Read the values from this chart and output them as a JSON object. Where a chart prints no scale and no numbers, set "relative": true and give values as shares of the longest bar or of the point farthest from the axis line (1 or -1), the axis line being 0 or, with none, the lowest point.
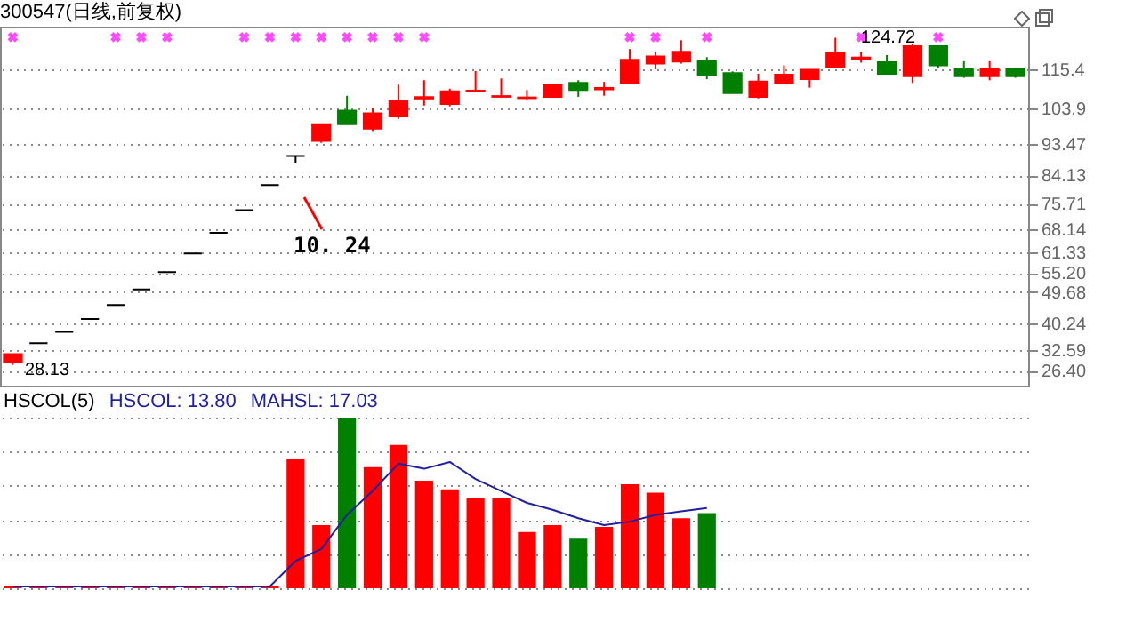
{
  "chart_data": [
    {
      "type": "candlestick",
      "title": "300547(日线,前复权)",
      "categories": [
        null,
        null,
        null,
        null,
        null,
        null,
        null,
        null,
        null,
        null,
        null,
        null,
        null,
        null,
        null,
        null,
        null,
        null,
        null,
        null,
        null,
        null,
        null,
        null,
        null,
        null,
        null,
        null,
        null,
        null,
        null,
        null,
        null,
        null,
        null,
        null,
        null,
        null,
        null,
        null
      ],
      "ohlc": [
        [
          29.0,
          31.3,
          28.13,
          31.3
        ],
        [
          34.5,
          34.5,
          34.5,
          34.5
        ],
        [
          37.9,
          37.9,
          37.9,
          37.9
        ],
        [
          41.7,
          41.7,
          41.7,
          41.7
        ],
        [
          45.8,
          45.8,
          45.8,
          45.8
        ],
        [
          50.4,
          50.4,
          50.4,
          50.4
        ],
        [
          55.5,
          55.5,
          55.5,
          55.5
        ],
        [
          61.0,
          61.0,
          61.0,
          61.0
        ],
        [
          67.1,
          67.1,
          67.1,
          67.1
        ],
        [
          73.8,
          73.8,
          73.8,
          73.8
        ],
        [
          81.2,
          81.2,
          81.2,
          81.2
        ],
        [
          89.8,
          89.8,
          87.8,
          89.8
        ],
        [
          94.3,
          99.2,
          93.7,
          99.2
        ],
        [
          103.2,
          107.6,
          99.2,
          99.2
        ],
        [
          97.9,
          104.0,
          97.2,
          102.4
        ],
        [
          101.5,
          110.9,
          100.8,
          106.0
        ],
        [
          106.8,
          112.2,
          104.7,
          107.2
        ],
        [
          105.2,
          109.7,
          104.5,
          108.9
        ],
        [
          108.9,
          114.9,
          108.7,
          109.1
        ],
        [
          107.3,
          112.7,
          107.1,
          107.5
        ],
        [
          106.9,
          109.3,
          106.3,
          107.1
        ],
        [
          107.3,
          110.9,
          107.3,
          110.9
        ],
        [
          111.4,
          112.2,
          107.3,
          109.3
        ],
        [
          109.5,
          111.7,
          107.6,
          109.9
        ],
        [
          111.4,
          121.4,
          111.4,
          118.2
        ],
        [
          117.1,
          120.6,
          115.4,
          119.2
        ],
        [
          117.7,
          124.0,
          117.1,
          120.6
        ],
        [
          117.8,
          119.0,
          112.5,
          113.8
        ],
        [
          114.3,
          114.8,
          108.4,
          108.4
        ],
        [
          107.3,
          114.1,
          106.8,
          111.8
        ],
        [
          111.4,
          116.6,
          111.0,
          113.8
        ],
        [
          112.5,
          115.3,
          110.0,
          115.3
        ],
        [
          116.2,
          124.72,
          116.2,
          120.3
        ],
        [
          118.5,
          120.6,
          117.4,
          118.9
        ],
        [
          117.5,
          119.6,
          113.9,
          114.1
        ],
        [
          113.4,
          123.0,
          111.4,
          122.2
        ],
        [
          122.2,
          122.2,
          115.9,
          116.6
        ],
        [
          115.4,
          117.8,
          112.9,
          113.4
        ],
        [
          113.4,
          117.8,
          112.2,
          115.7
        ],
        [
          115.4,
          115.7,
          112.9,
          113.4
        ]
      ],
      "colors": [
        "#ff0000",
        "#000000",
        "#000000",
        "#000000",
        "#000000",
        "#000000",
        "#000000",
        "#000000",
        "#000000",
        "#000000",
        "#000000",
        "#000000",
        "#ff0000",
        "#008000",
        "#ff0000",
        "#ff0000",
        "#ff0000",
        "#ff0000",
        "#ff0000",
        "#ff0000",
        "#ff0000",
        "#ff0000",
        "#008000",
        "#ff0000",
        "#ff0000",
        "#ff0000",
        "#ff0000",
        "#008000",
        "#008000",
        "#ff0000",
        "#ff0000",
        "#ff0000",
        "#ff0000",
        "#ff0000",
        "#008000",
        "#ff0000",
        "#008000",
        "#008000",
        "#ff0000",
        "#008000"
      ],
      "series": [
        {
          "type": "scatter",
          "color": "#ff00ff",
          "values": [
            124.9,
            null,
            null,
            null,
            124.9,
            124.9,
            124.9,
            null,
            null,
            124.9,
            124.9,
            124.9,
            124.9,
            124.9,
            124.9,
            124.9,
            124.9,
            null,
            null,
            null,
            null,
            null,
            null,
            null,
            124.9,
            124.9,
            null,
            124.9,
            null,
            null,
            null,
            null,
            null,
            124.9,
            null,
            null,
            124.9,
            null,
            null,
            null
          ]
        }
      ],
      "marker": "cross",
      "ylim": [
        22,
        128
      ],
      "yticks": [
        {
          "value": 26.4,
          "label": "26.40"
        },
        32.59,
        40.24,
        49.68,
        {
          "value": 55.2,
          "label": "55.20"
        },
        61.33,
        68.14,
        75.71,
        84.13,
        93.47,
        103.9,
        115.4
      ],
      "grid": "y",
      "tick_labels": "y",
      "annotations": [
        "28.13",
        "124.72",
        "10. 24"
      ]
    },
    {
      "type": "bar",
      "title": "HSCOL(5)",
      "annotations": [
        "HSCOL: 13.80",
        "MAHSL: 17.03"
      ],
      "categories": [
        null,
        null,
        null,
        null,
        null,
        null,
        null,
        null,
        null,
        null,
        null,
        null,
        null,
        null,
        null,
        null,
        null,
        null,
        null,
        null,
        null,
        null,
        null,
        null,
        null,
        null,
        null,
        null,
        null,
        null,
        null,
        null,
        null,
        null,
        null,
        null,
        null,
        null,
        null,
        null
      ],
      "relative": true,
      "grid": "y",
      "tick_labels": false,
      "series": [
        {
          "type": "bar",
          "colors": [
            "#ff0000",
            "#ff0000",
            "#ff0000",
            "#ff0000",
            "#ff0000",
            "#ff0000",
            "#ff0000",
            "#ff0000",
            "#ff0000",
            "#ff0000",
            "#ff0000",
            "#ff0000",
            "#ff0000",
            "#008000",
            "#ff0000",
            "#ff0000",
            "#ff0000",
            "#ff0000",
            "#ff0000",
            "#ff0000",
            "#ff0000",
            "#ff0000",
            "#008000",
            "#ff0000",
            "#ff0000",
            "#ff0000",
            "#ff0000",
            "#008000",
            "#008000",
            "#ff0000",
            "#ff0000",
            "#ff0000",
            "#ff0000",
            "#ff0000",
            "#008000",
            "#ff0000",
            "#008000",
            "#008000",
            "#ff0000",
            "#008000"
          ],
          "values": [
            0.01,
            0.01,
            0.01,
            0.01,
            0.01,
            0.01,
            0.01,
            0.01,
            0.01,
            0.01,
            0.01,
            0.76,
            0.37,
            1,
            0.71,
            0.84,
            0.63,
            0.58,
            0.53,
            0.53,
            0.33,
            0.37,
            0.29,
            0.36,
            0.61,
            0.56,
            0.41,
            0.44,
            null,
            null,
            null,
            null,
            null,
            null,
            null,
            null,
            null,
            null,
            null,
            null
          ]
        },
        {
          "type": "line",
          "color": "#2020a0",
          "values": [
            0.01,
            0.01,
            0.01,
            0.01,
            0.01,
            0.01,
            0.01,
            0.01,
            0.01,
            0.01,
            0.01,
            0.16,
            0.23,
            0.43,
            0.57,
            0.73,
            0.7,
            0.74,
            0.64,
            0.57,
            0.5,
            0.46,
            0.41,
            0.37,
            0.39,
            0.43,
            0.45,
            0.47,
            null,
            null,
            null,
            null,
            null,
            null,
            null,
            null,
            null,
            null,
            null,
            null
          ]
        }
      ]
    }
  ]
}
